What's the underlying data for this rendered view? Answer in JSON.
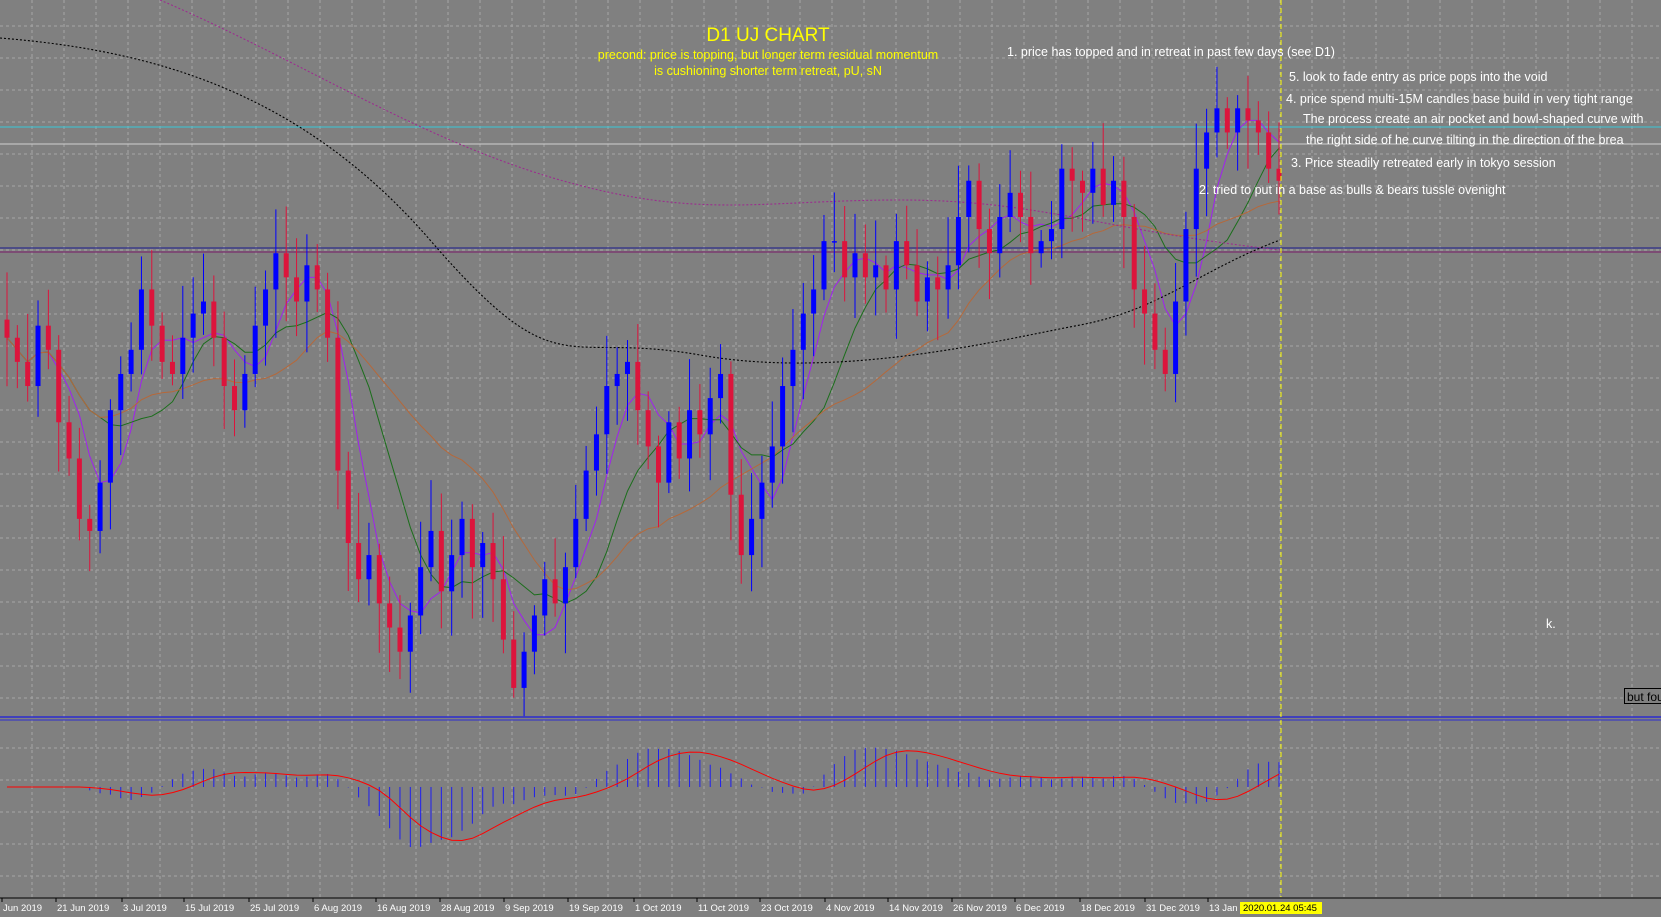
{
  "chart_data": {
    "type": "candlestick",
    "title": "D1 UJ CHART",
    "subtitle_lines": [
      "precond: price is topping, but longer term residual momentum",
      "is cushioning shorter term retreat, pU, sN"
    ],
    "annotations": [
      "1. price has topped and in retreat in past few days (see D1)",
      "5. look to fade entry as price pops into the void",
      "4. price spend multi-15M candles base build in very tight range",
      "The process create an air pocket and bowl-shaped curve with",
      "the right side of he curve tilting in the direction of the brea",
      "3. Price steadily retreated early in tokyo session",
      "2. tried to put in a base as bulls & bears tussle ovenight",
      "k."
    ],
    "partial_label": "but fou",
    "x_tick_labels": [
      "Jun 2019",
      "21 Jun 2019",
      "3 Jul 2019",
      "15 Jul 2019",
      "25 Jul 2019",
      "6 Aug 2019",
      "16 Aug 2019",
      "28 Aug 2019",
      "9 Sep 2019",
      "19 Sep 2019",
      "1 Oct 2019",
      "11 Oct 2019",
      "23 Oct 2019",
      "4 Nov 2019",
      "14 Nov 2019",
      "26 Nov 2019",
      "6 Dec 2019",
      "18 Dec 2019",
      "31 Dec 2019",
      "13 Jan 2"
    ],
    "cursor_time_label": "2020.01.24 05:45",
    "candle_close_profile": [
      108.2,
      108.0,
      107.8,
      108.3,
      108.1,
      107.5,
      107.2,
      106.7,
      106.6,
      107.0,
      107.6,
      107.9,
      108.1,
      108.6,
      108.3,
      108.0,
      107.9,
      108.2,
      108.4,
      108.5,
      108.2,
      107.8,
      107.6,
      107.9,
      108.3,
      108.6,
      108.9,
      108.7,
      108.5,
      108.8,
      108.6,
      108.2,
      107.1,
      106.5,
      106.2,
      106.4,
      106.0,
      105.8,
      105.6,
      105.9,
      106.3,
      106.6,
      106.1,
      106.4,
      106.7,
      106.3,
      106.5,
      106.2,
      105.7,
      105.3,
      105.6,
      105.9,
      106.2,
      106.0,
      106.3,
      106.7,
      107.1,
      107.4,
      107.8,
      107.9,
      108.0,
      107.6,
      107.3,
      107.0,
      107.5,
      107.2,
      107.6,
      107.4,
      107.7,
      107.9,
      106.9,
      106.4,
      106.7,
      107.0,
      107.3,
      107.8,
      108.1,
      108.4,
      108.6,
      109.0,
      109.0,
      108.7,
      108.9,
      108.7,
      108.8,
      108.6,
      109.0,
      108.8,
      108.5,
      108.7,
      108.6,
      108.8,
      109.2,
      109.5,
      109.1,
      108.9,
      109.2,
      109.4,
      109.2,
      108.9,
      109.0,
      109.1,
      109.6,
      109.5,
      109.4,
      109.6,
      109.3,
      109.5,
      109.2,
      108.6,
      108.4,
      108.1,
      107.9,
      108.5,
      109.1,
      109.6,
      109.9,
      110.1,
      109.9,
      110.1,
      110.0,
      109.9,
      109.6,
      109.5
    ],
    "series": [
      {
        "name": "fast-ma",
        "color": "#a020f0",
        "style": "solid"
      },
      {
        "name": "mid-ma",
        "color": "#1b6e1b",
        "style": "solid"
      },
      {
        "name": "slow-ma",
        "color": "#b5683a",
        "style": "solid"
      },
      {
        "name": "long-ma",
        "color": "#000000",
        "style": "dotted"
      },
      {
        "name": "longest-ma",
        "color": "#9b2d8e",
        "style": "dotted"
      }
    ],
    "oscillator": {
      "type": "macd",
      "histogram_color": "#1e1ef0",
      "signal_color": "#ff0000"
    },
    "grid": true,
    "colors": {
      "background": "#808080",
      "bull": "#0000ff",
      "bear": "#dc143c",
      "title": "#ffff00",
      "annotation": "#ffffff",
      "cyan_line": "#38c9d8",
      "hline": "#2d2d8a",
      "cursor": "#ffff00"
    }
  }
}
